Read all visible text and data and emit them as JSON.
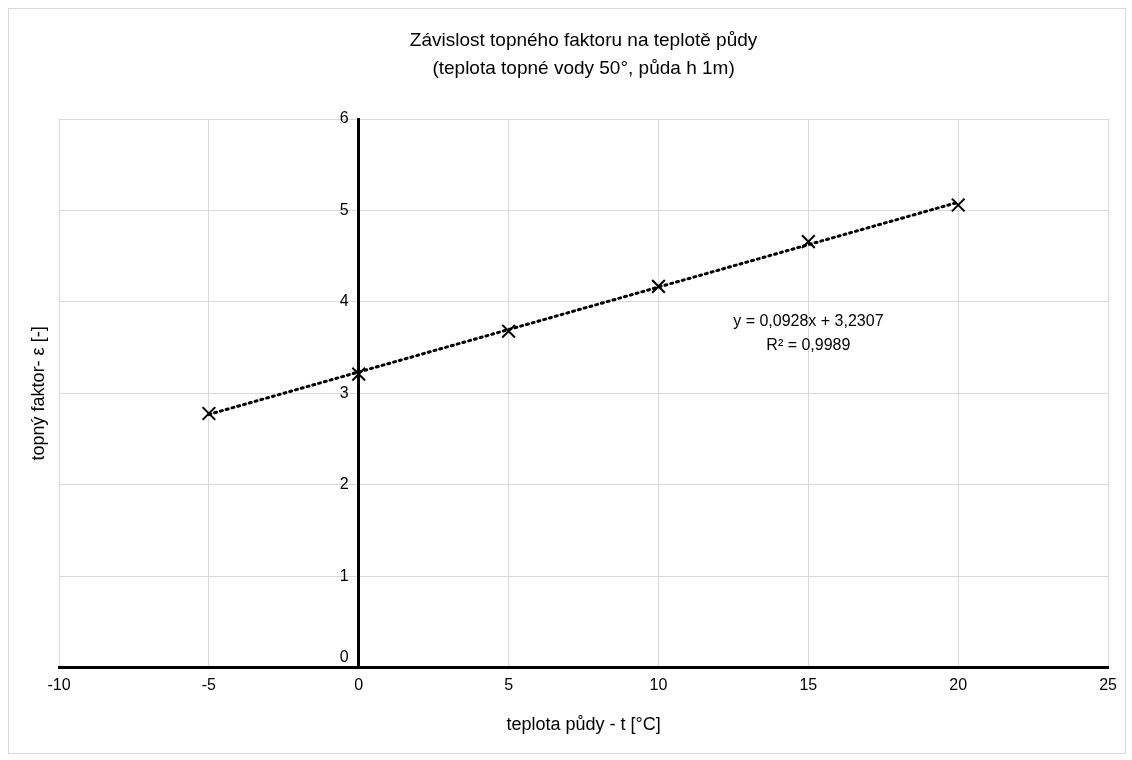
{
  "chart_data": {
    "type": "scatter",
    "title": "Závislost topného faktoru na teplotě půdy",
    "subtitle": "(teplota topné vody 50°, půda h 1m)",
    "xlabel": "teplota půdy - t [°C]",
    "ylabel": "topný faktor- ε [-]",
    "series": [
      {
        "color": "#000000",
        "x": [
          -5,
          0,
          5,
          10,
          15,
          20
        ],
        "values": [
          2.78,
          3.21,
          3.68,
          4.17,
          4.66,
          5.06
        ],
        "marker": "cross"
      },
      {
        "type": "line",
        "color": "#000000",
        "x": [
          -5,
          20
        ],
        "values": [
          2.77,
          5.09
        ],
        "line_style": "dotted",
        "marker": "none"
      }
    ],
    "xlim": [
      -10,
      25
    ],
    "xticks": [
      -10,
      -5,
      0,
      5,
      10,
      15,
      20,
      25
    ],
    "ylim": [
      0,
      6
    ],
    "yticks": [
      0,
      1,
      2,
      3,
      4,
      5,
      6
    ],
    "grid": true,
    "legend": false,
    "annotations": [
      "y = 0,0928x + 3,2307",
      "R² = 0,9989"
    ]
  }
}
